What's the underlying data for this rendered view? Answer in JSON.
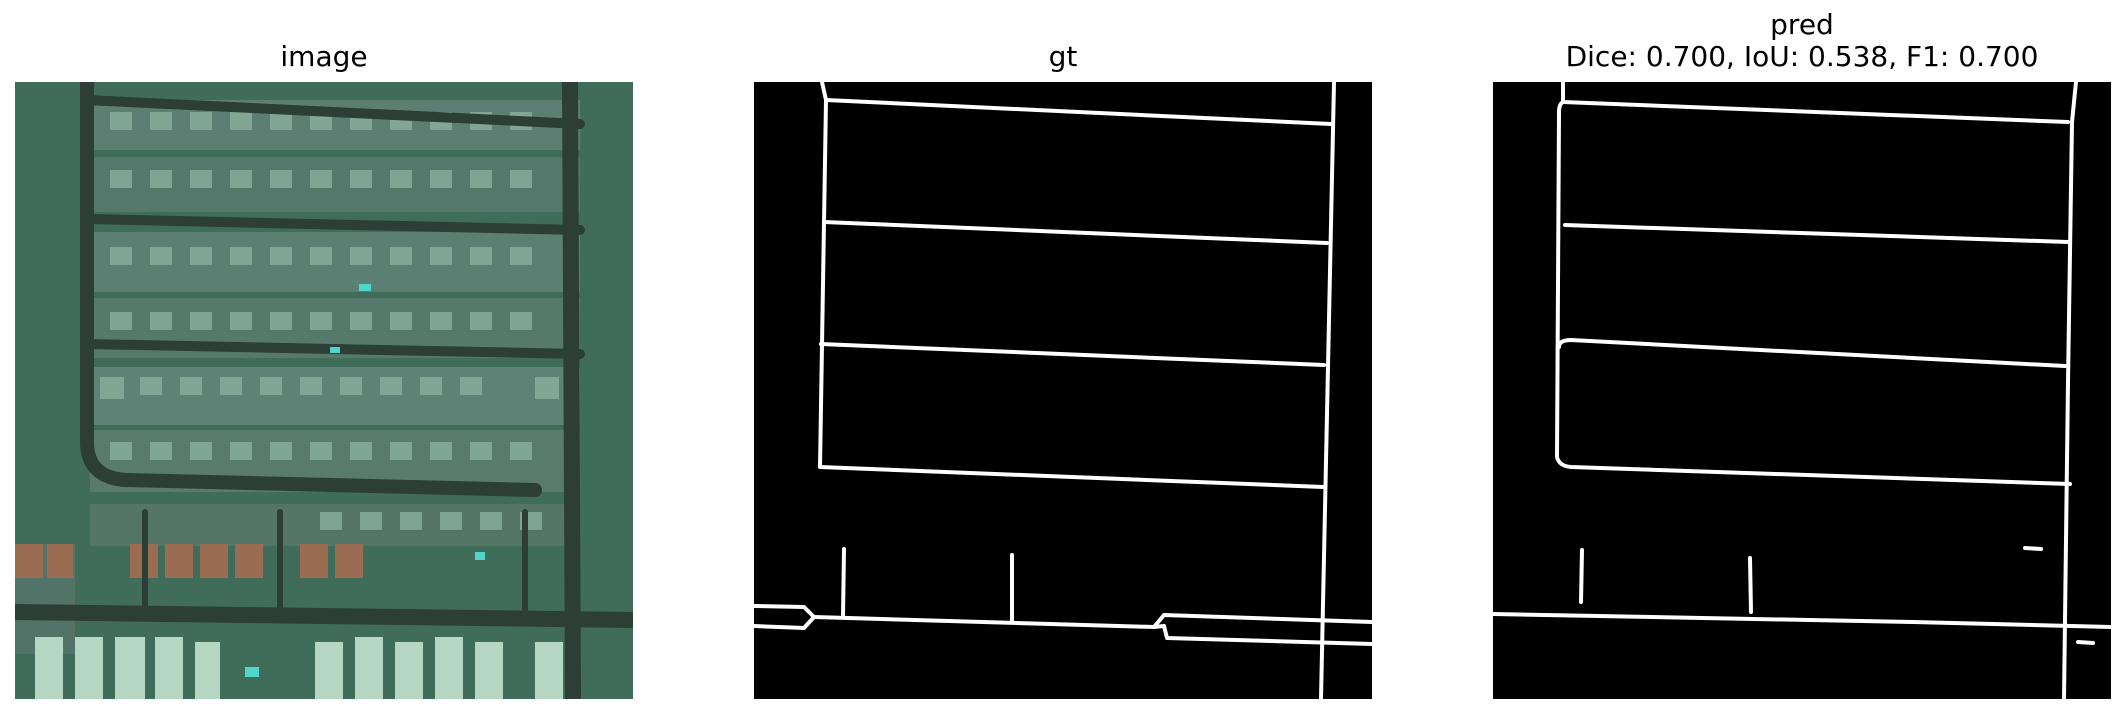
{
  "panels": {
    "image": {
      "title": "image"
    },
    "gt": {
      "title": "gt"
    },
    "pred": {
      "title": "pred",
      "metrics": "Dice: 0.700, IoU: 0.538, F1: 0.700"
    }
  },
  "colors": {
    "background": "#ffffff",
    "mask_background": "#000000",
    "mask_foreground": "#ffffff",
    "road": "#2c3e36",
    "vegetation": "#3f6d5a",
    "roof_light": "#8db3a2",
    "roof_dark": "#536d63",
    "roof_tile": "#9a6d53"
  }
}
